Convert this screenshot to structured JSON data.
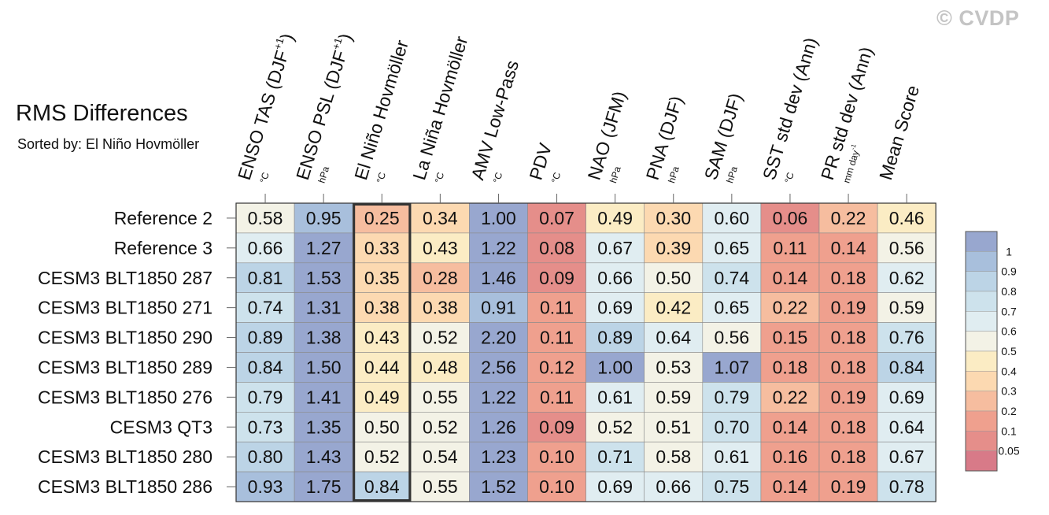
{
  "watermark": "© CVDP",
  "chart_data": {
    "type": "heatmap",
    "title": "RMS Differences",
    "subtitle": "Sorted by: El Niño Hovmöller",
    "columns": [
      {
        "label": "ENSO TAS (DJF",
        "sup": "+1",
        "close": ")",
        "unit": "°C"
      },
      {
        "label": "ENSO PSL (DJF",
        "sup": "+1",
        "close": ")",
        "unit": "hPa"
      },
      {
        "label": "El Niño Hovmöller",
        "sup": "",
        "close": "",
        "unit": "°C"
      },
      {
        "label": "La Niña Hovmöller",
        "sup": "",
        "close": "",
        "unit": "°C"
      },
      {
        "label": "AMV Low-Pass",
        "sup": "",
        "close": "",
        "unit": "°C"
      },
      {
        "label": "PDV",
        "sup": "",
        "close": "",
        "unit": "°C"
      },
      {
        "label": "NAO (JFM)",
        "sup": "",
        "close": "",
        "unit": "hPa"
      },
      {
        "label": "PNA (DJF)",
        "sup": "",
        "close": "",
        "unit": "hPa"
      },
      {
        "label": "SAM (DJF)",
        "sup": "",
        "close": "",
        "unit": "hPa"
      },
      {
        "label": "SST std dev (Ann)",
        "sup": "",
        "close": "",
        "unit": "°C"
      },
      {
        "label": "PR std dev (Ann)",
        "sup": "",
        "close": "",
        "unit": "mm day",
        "unit_sup": "-1"
      },
      {
        "label": "Mean Score",
        "sup": "",
        "close": "",
        "unit": ""
      }
    ],
    "rows": [
      "Reference 2",
      "Reference 3",
      "CESM3 BLT1850 287",
      "CESM3 BLT1850 271",
      "CESM3 BLT1850 290",
      "CESM3 BLT1850 289",
      "CESM3 BLT1850 276",
      "CESM3 QT3",
      "CESM3 BLT1850 280",
      "CESM3 BLT1850 286"
    ],
    "values": [
      [
        "0.58",
        "0.95",
        "0.25",
        "0.34",
        "1.00",
        "0.07",
        "0.49",
        "0.30",
        "0.60",
        "0.06",
        "0.22",
        "0.46"
      ],
      [
        "0.66",
        "1.27",
        "0.33",
        "0.43",
        "1.22",
        "0.08",
        "0.67",
        "0.39",
        "0.65",
        "0.11",
        "0.14",
        "0.56"
      ],
      [
        "0.81",
        "1.53",
        "0.35",
        "0.28",
        "1.46",
        "0.09",
        "0.66",
        "0.50",
        "0.74",
        "0.14",
        "0.18",
        "0.62"
      ],
      [
        "0.74",
        "1.31",
        "0.38",
        "0.38",
        "0.91",
        "0.11",
        "0.69",
        "0.42",
        "0.65",
        "0.22",
        "0.19",
        "0.59"
      ],
      [
        "0.89",
        "1.38",
        "0.43",
        "0.52",
        "2.20",
        "0.11",
        "0.89",
        "0.64",
        "0.56",
        "0.15",
        "0.18",
        "0.76"
      ],
      [
        "0.84",
        "1.50",
        "0.44",
        "0.48",
        "2.56",
        "0.12",
        "1.00",
        "0.53",
        "1.07",
        "0.18",
        "0.18",
        "0.84"
      ],
      [
        "0.79",
        "1.41",
        "0.49",
        "0.55",
        "1.22",
        "0.11",
        "0.61",
        "0.59",
        "0.79",
        "0.22",
        "0.19",
        "0.69"
      ],
      [
        "0.73",
        "1.35",
        "0.50",
        "0.52",
        "1.26",
        "0.09",
        "0.52",
        "0.51",
        "0.70",
        "0.14",
        "0.18",
        "0.64"
      ],
      [
        "0.80",
        "1.43",
        "0.52",
        "0.54",
        "1.23",
        "0.10",
        "0.71",
        "0.58",
        "0.61",
        "0.16",
        "0.18",
        "0.67"
      ],
      [
        "0.93",
        "1.75",
        "0.84",
        "0.55",
        "1.52",
        "0.10",
        "0.69",
        "0.66",
        "0.75",
        "0.14",
        "0.19",
        "0.78"
      ]
    ],
    "highlight_column": 2,
    "colorbar": {
      "ticks": [
        "1",
        "0.9",
        "0.8",
        "0.7",
        "0.6",
        "0.5",
        "0.4",
        "0.3",
        "0.2",
        "0.1",
        "0.05"
      ],
      "bins": [
        {
          "min": 1.0,
          "color": "#98a7cf"
        },
        {
          "min": 0.9,
          "color": "#a8bfdc"
        },
        {
          "min": 0.8,
          "color": "#bcd4e6"
        },
        {
          "min": 0.7,
          "color": "#cde2ec"
        },
        {
          "min": 0.6,
          "color": "#e0edf1"
        },
        {
          "min": 0.5,
          "color": "#f3f2e6"
        },
        {
          "min": 0.4,
          "color": "#fbecc4"
        },
        {
          "min": 0.3,
          "color": "#fcd9b1"
        },
        {
          "min": 0.2,
          "color": "#f6bd9f"
        },
        {
          "min": 0.1,
          "color": "#efa08e"
        },
        {
          "min": 0.05,
          "color": "#e58e8a"
        },
        {
          "min": 0.0,
          "color": "#d87a88"
        }
      ]
    }
  }
}
